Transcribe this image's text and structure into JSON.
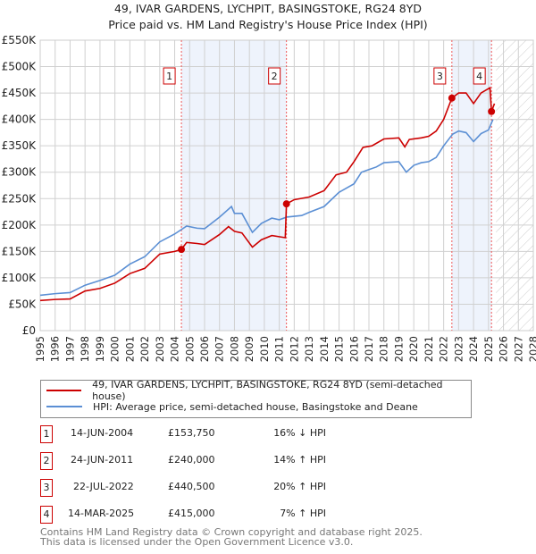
{
  "title": "49, IVAR GARDENS, LYCHPIT, BASINGSTOKE, RG24 8YD",
  "subtitle": "Price paid vs. HM Land Registry's House Price Index (HPI)",
  "chart_data": {
    "type": "line",
    "xlim": [
      1995,
      2028
    ],
    "ylim": [
      0,
      550000
    ],
    "xticks": [
      "1995",
      "1996",
      "1997",
      "1998",
      "1999",
      "2000",
      "2001",
      "2002",
      "2003",
      "2004",
      "2005",
      "2006",
      "2007",
      "2008",
      "2009",
      "2010",
      "2011",
      "2012",
      "2013",
      "2014",
      "2015",
      "2016",
      "2017",
      "2018",
      "2019",
      "2020",
      "2021",
      "2022",
      "2023",
      "2024",
      "2025",
      "2026",
      "2027",
      "2028"
    ],
    "yticks": [
      "£0",
      "£50K",
      "£100K",
      "£150K",
      "£200K",
      "£250K",
      "£300K",
      "£350K",
      "£400K",
      "£450K",
      "£500K",
      "£550K"
    ],
    "colors": {
      "property": "#cc0000",
      "hpi": "#5b8fd4",
      "shade": "#eef3fc"
    },
    "series": [
      {
        "name": "49, IVAR GARDENS, LYCHPIT, BASINGSTOKE, RG24 8YD (semi-detached house)",
        "points": [
          [
            1995,
            57000
          ],
          [
            1996,
            59000
          ],
          [
            1997,
            60000
          ],
          [
            1998,
            75000
          ],
          [
            1999,
            80000
          ],
          [
            2000,
            90000
          ],
          [
            2001,
            108000
          ],
          [
            2002,
            118000
          ],
          [
            2003,
            145000
          ],
          [
            2004,
            150000
          ],
          [
            2004.45,
            153750
          ],
          [
            2004.8,
            167000
          ],
          [
            2005.5,
            165000
          ],
          [
            2006,
            163000
          ],
          [
            2007,
            182000
          ],
          [
            2007.6,
            197000
          ],
          [
            2008,
            188000
          ],
          [
            2008.5,
            185000
          ],
          [
            2009.2,
            158000
          ],
          [
            2009.8,
            172000
          ],
          [
            2010.5,
            180000
          ],
          [
            2011.4,
            176000
          ],
          [
            2011.48,
            240000
          ],
          [
            2012,
            248000
          ],
          [
            2013,
            253000
          ],
          [
            2014,
            265000
          ],
          [
            2014.8,
            295000
          ],
          [
            2015.5,
            300000
          ],
          [
            2016,
            320000
          ],
          [
            2016.6,
            347000
          ],
          [
            2017.2,
            350000
          ],
          [
            2018,
            363000
          ],
          [
            2019,
            365000
          ],
          [
            2019.4,
            348000
          ],
          [
            2019.7,
            362000
          ],
          [
            2020.5,
            365000
          ],
          [
            2021,
            368000
          ],
          [
            2021.5,
            378000
          ],
          [
            2022,
            400000
          ],
          [
            2022.55,
            440500
          ],
          [
            2023,
            450000
          ],
          [
            2023.5,
            450000
          ],
          [
            2024,
            430000
          ],
          [
            2024.5,
            450000
          ],
          [
            2025.1,
            460000
          ],
          [
            2025.2,
            415000
          ],
          [
            2025.4,
            430000
          ]
        ]
      },
      {
        "name": "HPI: Average price, semi-detached house, Basingstoke and Deane",
        "points": [
          [
            1995,
            67000
          ],
          [
            1996,
            70000
          ],
          [
            1997,
            72000
          ],
          [
            1998,
            86000
          ],
          [
            1999,
            95000
          ],
          [
            2000,
            105000
          ],
          [
            2001,
            126000
          ],
          [
            2002,
            140000
          ],
          [
            2003,
            168000
          ],
          [
            2004,
            183000
          ],
          [
            2004.8,
            198000
          ],
          [
            2005.5,
            194000
          ],
          [
            2006,
            193000
          ],
          [
            2007,
            215000
          ],
          [
            2007.8,
            235000
          ],
          [
            2008,
            222000
          ],
          [
            2008.5,
            222000
          ],
          [
            2009.2,
            186000
          ],
          [
            2009.8,
            203000
          ],
          [
            2010.5,
            213000
          ],
          [
            2011,
            210000
          ],
          [
            2011.5,
            215000
          ],
          [
            2012.5,
            218000
          ],
          [
            2013,
            224000
          ],
          [
            2014,
            235000
          ],
          [
            2015,
            262000
          ],
          [
            2016,
            278000
          ],
          [
            2016.5,
            300000
          ],
          [
            2017,
            305000
          ],
          [
            2017.5,
            310000
          ],
          [
            2018,
            318000
          ],
          [
            2019,
            320000
          ],
          [
            2019.5,
            300000
          ],
          [
            2020,
            313000
          ],
          [
            2020.5,
            318000
          ],
          [
            2021,
            320000
          ],
          [
            2021.5,
            328000
          ],
          [
            2022,
            350000
          ],
          [
            2022.6,
            372000
          ],
          [
            2023,
            378000
          ],
          [
            2023.5,
            375000
          ],
          [
            2024,
            358000
          ],
          [
            2024.5,
            373000
          ],
          [
            2025,
            380000
          ],
          [
            2025.3,
            400000
          ]
        ]
      }
    ],
    "sales": [
      {
        "label": "1",
        "x": 2004.45,
        "price": 153750
      },
      {
        "label": "2",
        "x": 2011.48,
        "price": 240000
      },
      {
        "label": "3",
        "x": 2022.55,
        "price": 440500
      },
      {
        "label": "4",
        "x": 2025.2,
        "price": 415000
      }
    ],
    "shaded": [
      [
        2004.45,
        2011.48
      ],
      [
        2022.55,
        2025.2
      ]
    ],
    "forecast_from": 2025.5
  },
  "legend": {
    "property": "49, IVAR GARDENS, LYCHPIT, BASINGSTOKE, RG24 8YD (semi-detached house)",
    "hpi": "HPI: Average price, semi-detached house, Basingstoke and Deane"
  },
  "table": [
    {
      "num": "1",
      "date": "14-JUN-2004",
      "price": "£153,750",
      "hpi": "16% ↓ HPI"
    },
    {
      "num": "2",
      "date": "24-JUN-2011",
      "price": "£240,000",
      "hpi": "14% ↑ HPI"
    },
    {
      "num": "3",
      "date": "22-JUL-2022",
      "price": "£440,500",
      "hpi": "20% ↑ HPI"
    },
    {
      "num": "4",
      "date": "14-MAR-2025",
      "price": "£415,000",
      "hpi": "7% ↑ HPI"
    }
  ],
  "footer": {
    "line1": "Contains HM Land Registry data © Crown copyright and database right 2025.",
    "line2": "This data is licensed under the Open Government Licence v3.0."
  }
}
